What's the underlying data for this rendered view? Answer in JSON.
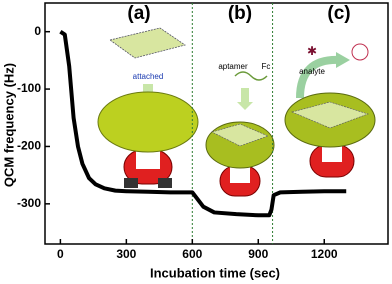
{
  "chart_data": {
    "type": "line",
    "x_label": "Incubation time (sec)",
    "y_label": "QCM frequency (Hz)",
    "x": [
      0,
      20,
      40,
      60,
      80,
      100,
      130,
      160,
      200,
      250,
      300,
      400,
      500,
      600,
      620,
      650,
      700,
      800,
      900,
      950,
      960,
      970,
      1000,
      1100,
      1200,
      1300
    ],
    "values": [
      0,
      -5,
      -60,
      -150,
      -200,
      -230,
      -255,
      -266,
      -273,
      -277,
      -278,
      -279,
      -280,
      -280,
      -290,
      -305,
      -315,
      -318,
      -320,
      -320,
      -310,
      -285,
      -280,
      -279,
      -278,
      -278
    ],
    "color": "#000000",
    "xlim": [
      -70,
      1490
    ],
    "ylim": [
      -370,
      50
    ],
    "xticks": [
      0,
      300,
      600,
      900,
      1200
    ],
    "yticks": [
      0,
      -100,
      -200,
      -300
    ],
    "dividers": [
      600,
      965
    ],
    "divider_color": "#2e7d32",
    "panel_labels": [
      "(a)",
      "(b)",
      "(c)"
    ],
    "annotations": [
      "attached",
      "aptamer",
      "Fc",
      "analyte"
    ]
  }
}
